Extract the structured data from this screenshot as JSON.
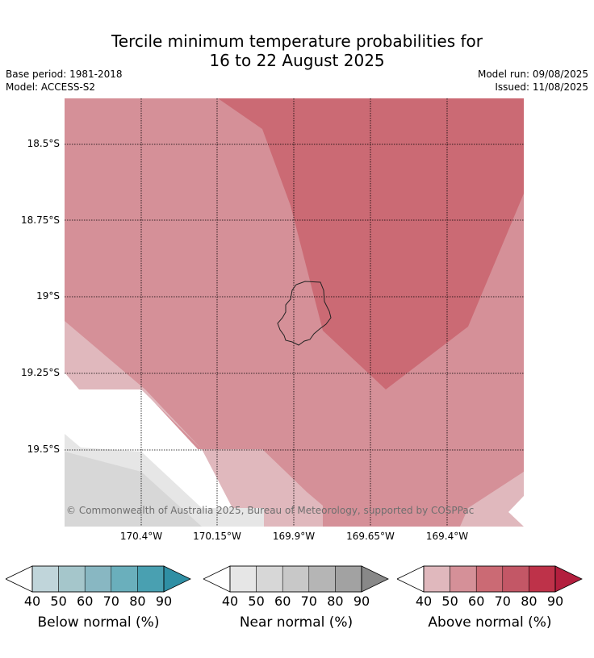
{
  "title": {
    "line1": "Tercile minimum temperature probabilities for",
    "line2": "16 to 22 August 2025"
  },
  "meta": {
    "base_period": "Base period: 1981-2018",
    "model": "Model: ACCESS-S2",
    "model_run": "Model run: 09/08/2025",
    "issued": "Issued: 11/08/2025"
  },
  "map": {
    "lat_labels": [
      "18.5°S",
      "18.75°S",
      "19°S",
      "19.25°S",
      "19.5°S"
    ],
    "lon_labels": [
      "170.4°W",
      "170.15°W",
      "169.9°W",
      "169.65°W",
      "169.4°W"
    ],
    "copyright": "© Commonwealth of Australia 2025, Bureau of Meteorology, supported by COSPPac",
    "colors": {
      "above_50": "#e0b8bd",
      "above_60": "#d59098",
      "above_70": "#cb6a74",
      "near_40": "#e6e6e6",
      "near_50": "#d7d7d7",
      "coast": "#222222",
      "grid": "#000000"
    }
  },
  "legends": [
    {
      "name": "Below normal (%)",
      "ticks": [
        "40",
        "50",
        "60",
        "70",
        "80",
        "90"
      ],
      "colors": [
        "#ffffff",
        "#c0d5da",
        "#a5c6cb",
        "#88b7c2",
        "#6aafbc",
        "#49a0b1",
        "#2f8fa4"
      ]
    },
    {
      "name": "Near normal (%)",
      "ticks": [
        "40",
        "50",
        "60",
        "70",
        "80",
        "90"
      ],
      "colors": [
        "#ffffff",
        "#e6e6e6",
        "#d7d7d7",
        "#c8c8c8",
        "#b5b5b5",
        "#a2a2a2",
        "#888888"
      ]
    },
    {
      "name": "Above normal (%)",
      "ticks": [
        "40",
        "50",
        "60",
        "70",
        "80",
        "90"
      ],
      "colors": [
        "#ffffff",
        "#e0b8bd",
        "#d59098",
        "#cb6a74",
        "#c35766",
        "#be3249",
        "#b31f3e"
      ]
    }
  ]
}
